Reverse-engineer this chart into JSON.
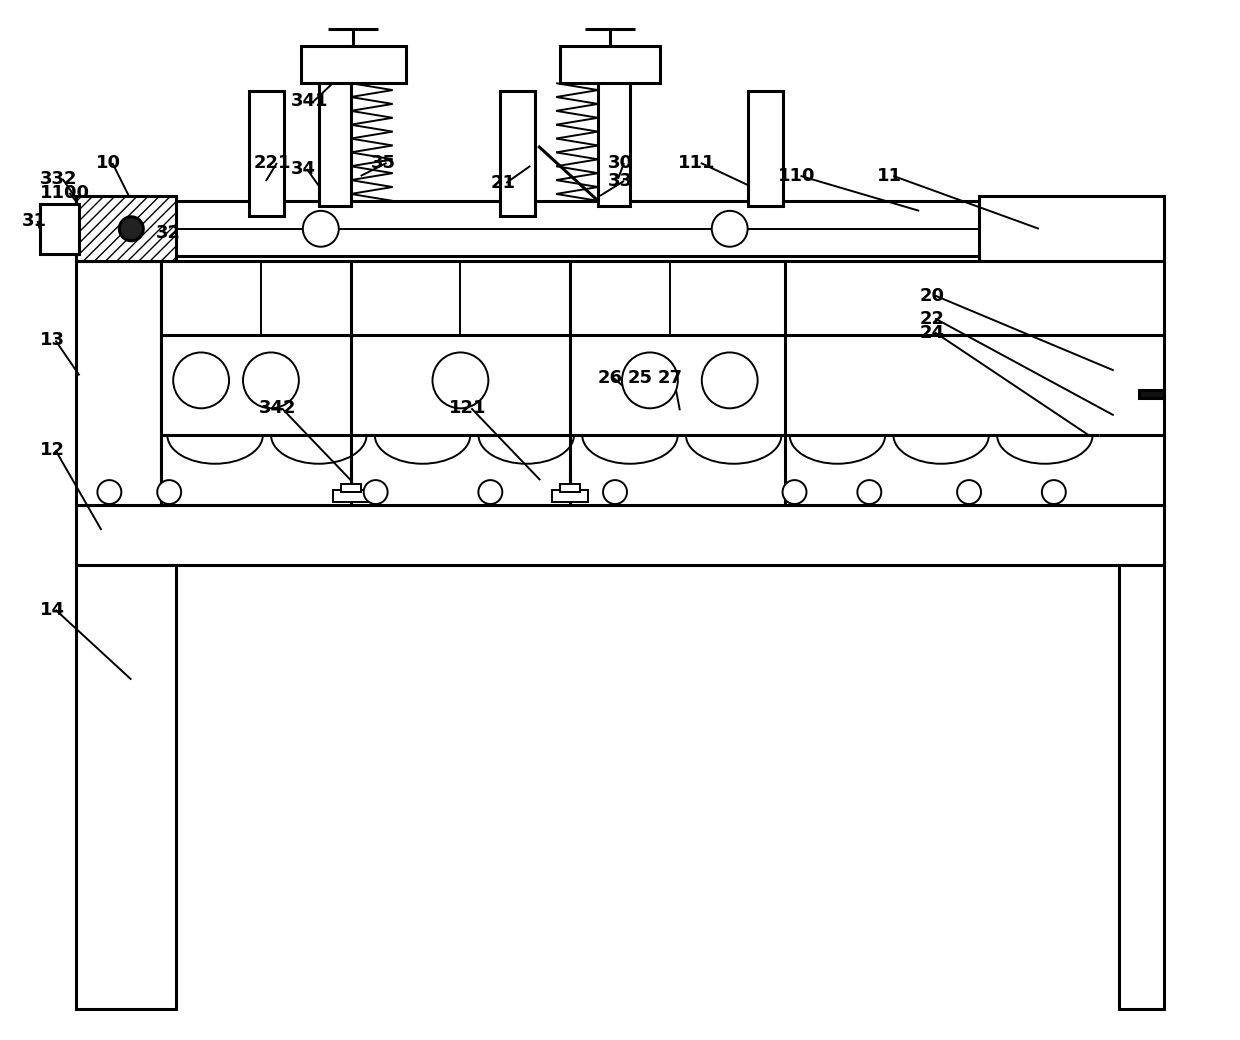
{
  "bg_color": "#ffffff",
  "lc": "#000000",
  "lw": 2.2,
  "tlw": 1.4,
  "fig_w": 12.4,
  "fig_h": 10.4,
  "dpi": 100
}
